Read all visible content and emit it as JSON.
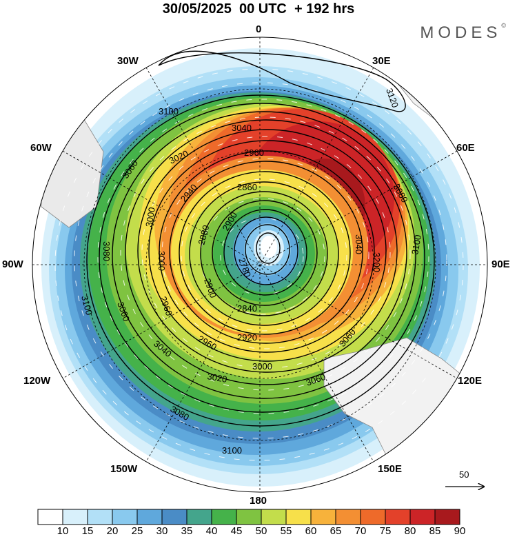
{
  "title": "30/05/2025  00 UTC  + 192 hrs",
  "brand": "MODES",
  "brand_mark": "©",
  "longitude_labels": {
    "n": "0",
    "ne30": "30E",
    "ne60": "60E",
    "e": "90E",
    "se120": "120E",
    "se150": "150E",
    "s": "180",
    "sw150": "150W",
    "sw120": "120W",
    "w": "90W",
    "nw60": "60W",
    "nw30": "30W"
  },
  "projection": "polar-stereographic, southern hemisphere",
  "contour_labels": [
    "3120",
    "3100",
    "3040",
    "3020",
    "2960",
    "3060",
    "3080",
    "2940",
    "3000",
    "2860",
    "2900",
    "2880",
    "2780",
    "3080",
    "3040",
    "2900",
    "3000",
    "2960",
    "3060",
    "3100",
    "2840",
    "2920",
    "2960",
    "3040",
    "3020",
    "3060",
    "3000",
    "3080",
    "3060",
    "3100",
    "3100",
    "3200"
  ],
  "colorbar": {
    "colors": [
      "#ffffff",
      "#d8f0fb",
      "#b2e0f7",
      "#89c9ee",
      "#5fa8dc",
      "#4a8cc6",
      "#44a58c",
      "#45b24a",
      "#7fc341",
      "#c3dd4b",
      "#f7e04a",
      "#f7b23b",
      "#f38f33",
      "#ee6a2a",
      "#e3412a",
      "#cc2427",
      "#a8191d"
    ],
    "labels": [
      "10",
      "15",
      "20",
      "25",
      "30",
      "35",
      "40",
      "45",
      "50",
      "55",
      "60",
      "65",
      "70",
      "75",
      "80",
      "85",
      "90"
    ]
  },
  "reference_vector": "50"
}
